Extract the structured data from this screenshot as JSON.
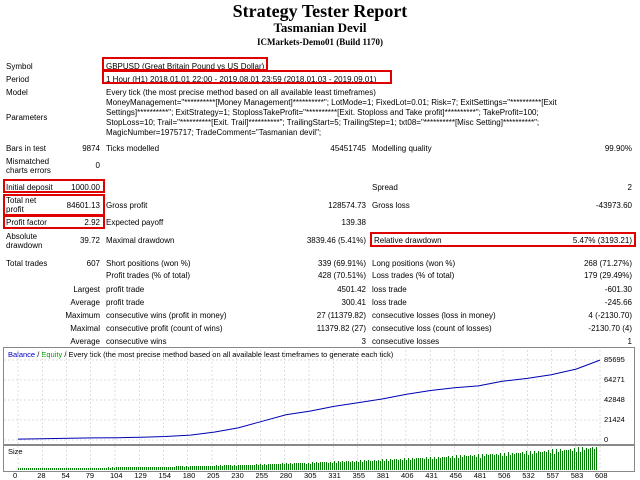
{
  "header": {
    "title": "Strategy Tester Report",
    "subtitle": "Tasmanian Devil",
    "server": "ICMarkets-Demo01 (Build 1170)"
  },
  "rows": {
    "symbol_label": "Symbol",
    "symbol_value": "GBPUSD (Great Britain Pound vs US Dollar)",
    "period_label": "Period",
    "period_value": "1 Hour (H1) 2018.01.01 22:00 - 2019.08.01 23:59 (2018.01.03 - 2019.09.01)",
    "model_label": "Model",
    "model_value": "Every tick (the most precise method based on all available least timeframes)",
    "parameters_label": "Parameters",
    "parameters_line1": "MoneyManagement=\"**********[Money Management]**********\"; LotMode=1; FixedLot=0.01; Risk=7; ExitSettings=\"**********[Exit",
    "parameters_line2": "Settings]**********\"; ExitStrategy=1; StoplossTakeProfit=\"**********[Exit. Stoploss and Take profit]**********\"; TakeProfit=100;",
    "parameters_line3": "StopLoss=10; Trail=\"**********[Exit. Trail]**********\"; TrailingStart=5; TrailingStep=1; txt08=\"**********[Misc Setting]**********\";",
    "parameters_line4": "MagicNumber=1975717; TradeComment=\"Tasmanian devil\";",
    "bars_label": "Bars in test",
    "bars_value": "9874",
    "ticks_label": "Ticks modelled",
    "ticks_value": "45451745",
    "quality_label": "Modelling quality",
    "quality_value": "99.90%",
    "mismatched_label_1": "Mismatched",
    "mismatched_label_2": "charts errors",
    "mismatched_value": "0",
    "deposit_label": "Initial deposit",
    "deposit_value": "1000.00",
    "spread_label": "Spread",
    "spread_value": "2",
    "netprofit_label_1": "Total net",
    "netprofit_label_2": "profit",
    "netprofit_value": "84601.13",
    "grossprofit_label": "Gross profit",
    "grossprofit_value": "128574.73",
    "grossloss_label": "Gross loss",
    "grossloss_value": "-43973.60",
    "pf_label": "Profit factor",
    "pf_value": "2.92",
    "payoff_label": "Expected payoff",
    "payoff_value": "139.38",
    "absdd_label_1": "Absolute",
    "absdd_label_2": "drawdown",
    "absdd_value": "39.72",
    "maxdd_label": "Maximal drawdown",
    "maxdd_value": "3839.46 (5.41%)",
    "reldd_label": "Relative drawdown",
    "reldd_value": "5.47% (3193.21)",
    "trades_label": "Total trades",
    "trades_value": "607",
    "short_label": "Short positions (won %)",
    "short_value": "339 (69.91%)",
    "long_label": "Long positions (won %)",
    "long_value": "268 (71.27%)",
    "pt_label": "Profit trades (% of total)",
    "pt_value": "428 (70.51%)",
    "lt_label": "Loss trades (% of total)",
    "lt_value": "179 (29.49%)",
    "largest_label": "Largest",
    "largest_pt_label": "profit trade",
    "largest_pt_value": "4501.42",
    "largest_lt_label": "loss trade",
    "largest_lt_value": "-601.30",
    "average_label": "Average",
    "average_pt_label": "profit trade",
    "average_pt_value": "300.41",
    "average_lt_label": "loss trade",
    "average_lt_value": "-245.66",
    "maximum_label": "Maximum",
    "max_cw_label": "consecutive wins (profit in money)",
    "max_cw_value": "27 (11379.82)",
    "max_cl_label": "consecutive losses (loss in money)",
    "max_cl_value": "4 (-2130.70)",
    "maximal_label": "Maximal",
    "mxl_cp_label": "consecutive profit (count of wins)",
    "mxl_cp_value": "11379.82 (27)",
    "mxl_cl_label": "consecutive loss (count of losses)",
    "mxl_cl_value": "-2130.70 (4)",
    "avg2_label": "Average",
    "avg_cw_label": "consecutive wins",
    "avg_cw_value": "3",
    "avg_cl_label": "consecutive losses",
    "avg_cl_value": "1"
  },
  "chart": {
    "legend_balance": "Balance",
    "legend_sep": " / ",
    "legend_equity": "Equity",
    "legend_rest": " / Every tick (the most precise method based on all available least timeframes to generate each tick)",
    "size_label": "Size",
    "colors": {
      "balance": "#0000b4",
      "volume": "#008000"
    }
  },
  "chart_data": {
    "type": "line",
    "title": "",
    "series": [
      {
        "name": "Balance",
        "x": [
          0,
          25,
          54,
          79,
          104,
          129,
          154,
          180,
          205,
          230,
          255,
          280,
          305,
          330,
          355,
          381,
          406,
          431,
          456,
          481,
          506,
          532,
          557,
          583,
          608
        ],
        "values": [
          1000,
          1300,
          1800,
          2200,
          2500,
          3000,
          3800,
          5200,
          8500,
          13000,
          20000,
          27000,
          31000,
          36000,
          40000,
          44000,
          49000,
          53000,
          56000,
          58000,
          63000,
          66000,
          70000,
          76000,
          85601
        ]
      }
    ],
    "y_ticks": [
      "85695",
      "64271",
      "42848",
      "21424",
      "0"
    ],
    "x_ticks": [
      "0",
      "28",
      "54",
      "79",
      "104",
      "129",
      "154",
      "180",
      "205",
      "230",
      "255",
      "280",
      "305",
      "331",
      "355",
      "381",
      "406",
      "431",
      "456",
      "481",
      "506",
      "532",
      "557",
      "583",
      "608"
    ],
    "ylim": [
      0,
      85695
    ],
    "xlim": [
      0,
      608
    ]
  }
}
